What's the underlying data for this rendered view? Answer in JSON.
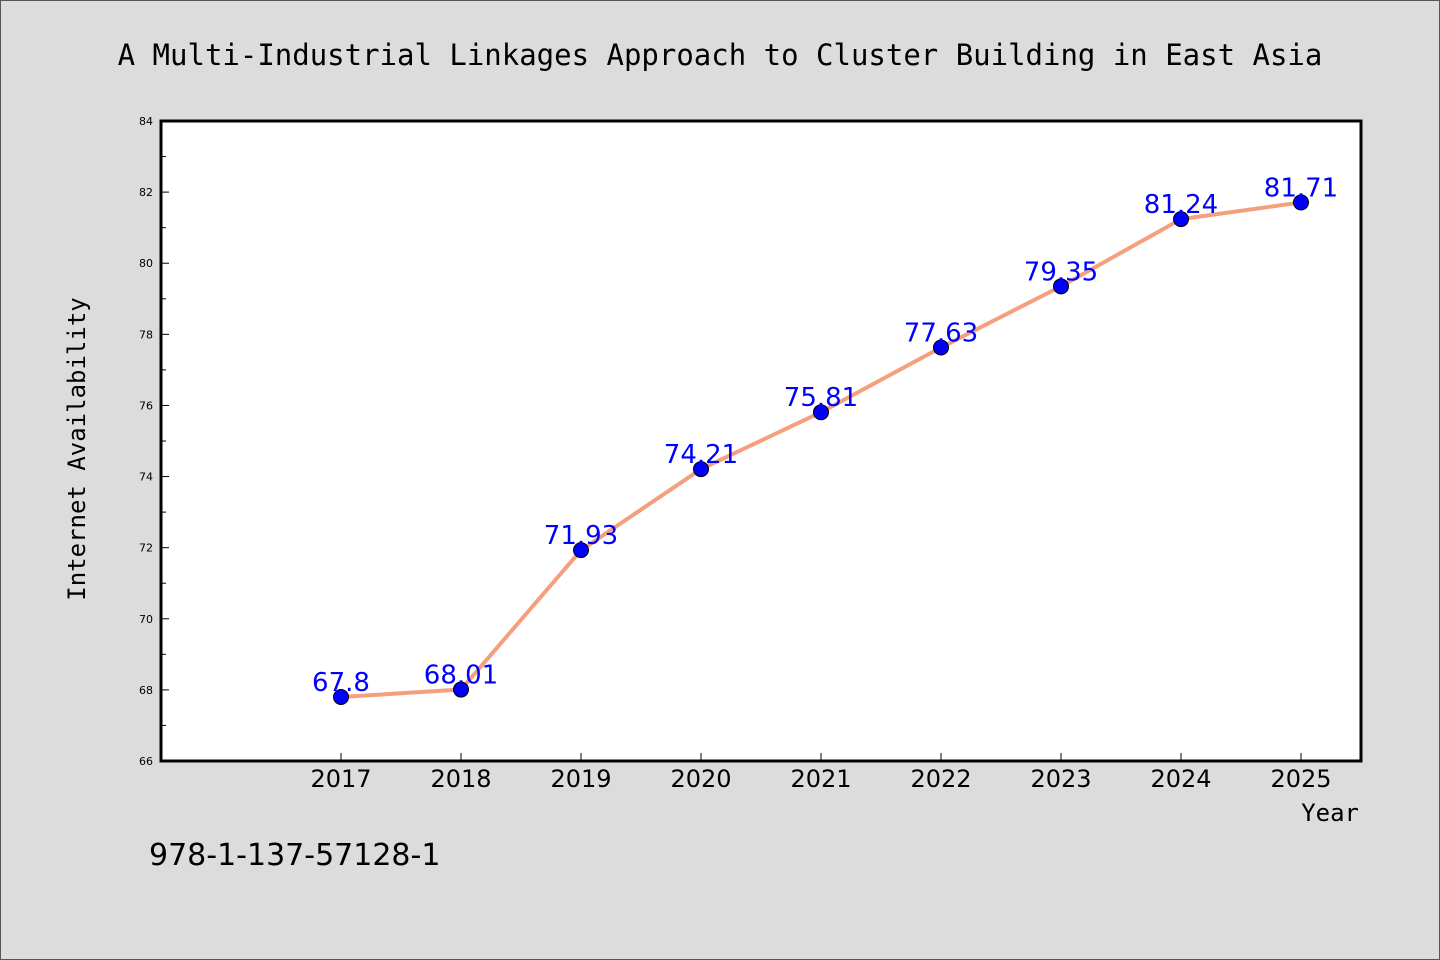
{
  "chart_data": {
    "type": "line",
    "title": "A Multi-Industrial Linkages Approach to Cluster Building in East Asia",
    "xlabel": "Year",
    "ylabel": "Internet Availability",
    "categories": [
      "2017",
      "2018",
      "2019",
      "2020",
      "2021",
      "2022",
      "2023",
      "2024",
      "2025"
    ],
    "series": [
      {
        "values": [
          67.8,
          68.01,
          71.93,
          74.21,
          75.81,
          77.63,
          79.35,
          81.24,
          81.71
        ],
        "data_labels": [
          "67.8",
          "68.01",
          "71.93",
          "74.21",
          "75.81",
          "77.63",
          "79.35",
          "81.24",
          "81.71"
        ]
      }
    ],
    "ylim": [
      66,
      84
    ],
    "yticks": [
      "66",
      "68",
      "70",
      "72",
      "74",
      "76",
      "78",
      "80",
      "82",
      "84"
    ],
    "grid": false,
    "legend": "none",
    "colors": {
      "line": "#f4a07e",
      "marker": "#0000ff",
      "data_label": "#0000ff",
      "background": "#dcdcdc",
      "plot_area": "#ffffff"
    }
  },
  "footer": {
    "isbn": "978-1-137-57128-1"
  }
}
